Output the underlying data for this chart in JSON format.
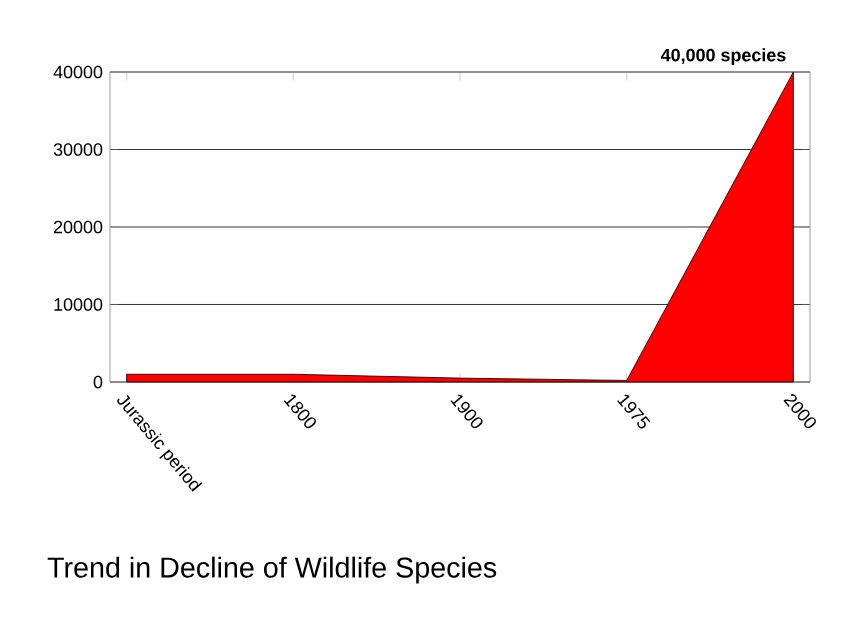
{
  "chart_data": {
    "type": "area",
    "title": "Trend in Decline of Wildlife Species",
    "categories": [
      "Jurassic period",
      "1800",
      "1900",
      "1975",
      "2000"
    ],
    "values": [
      1000,
      1000,
      500,
      200,
      40000
    ],
    "color": "#ff0000",
    "ylim": [
      0,
      40000
    ],
    "yticks": [
      0,
      10000,
      20000,
      30000,
      40000
    ],
    "grid": "y",
    "annotations": [
      {
        "text": "40,000 species",
        "x": "2000",
        "y": 40000
      }
    ]
  }
}
